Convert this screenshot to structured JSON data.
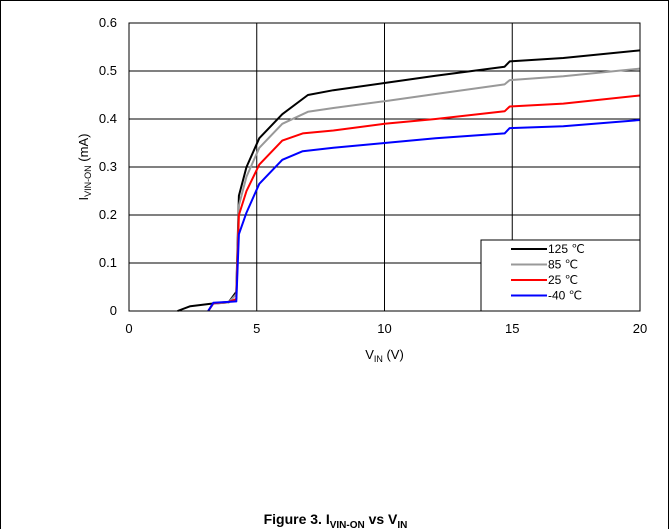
{
  "chart_data": {
    "type": "line",
    "xlabel": {
      "main": "V",
      "sub": "IN",
      "unit": " (V)"
    },
    "ylabel": {
      "main": "I",
      "sub": "VIN-ON",
      "unit": " (mA)"
    },
    "xlim": [
      0,
      20
    ],
    "ylim": [
      0,
      0.6
    ],
    "xticks": [
      0,
      5,
      10,
      15,
      20
    ],
    "yticks": [
      0,
      0.1,
      0.2,
      0.3,
      0.4,
      0.5,
      0.6
    ],
    "ytick_labels": [
      "0",
      "0.1",
      "0.2",
      "0.3",
      "0.4",
      "0.5",
      "0.6"
    ],
    "grid": true,
    "legend_position": "bottom-right",
    "series": [
      {
        "name": "125 ℃",
        "color": "#000000",
        "points": [
          [
            1.9,
            0
          ],
          [
            2.4,
            0.01
          ],
          [
            3.2,
            0.015
          ],
          [
            3.9,
            0.018
          ],
          [
            4.2,
            0.04
          ],
          [
            4.3,
            0.24
          ],
          [
            4.6,
            0.3
          ],
          [
            5.1,
            0.36
          ],
          [
            6,
            0.41
          ],
          [
            7,
            0.45
          ],
          [
            8,
            0.46
          ],
          [
            10,
            0.475
          ],
          [
            12,
            0.49
          ],
          [
            14.7,
            0.509
          ],
          [
            14.9,
            0.52
          ],
          [
            17,
            0.527
          ],
          [
            20,
            0.543
          ]
        ]
      },
      {
        "name": "85 ℃",
        "color": "#999999",
        "points": [
          [
            3.1,
            0
          ],
          [
            3.3,
            0.015
          ],
          [
            3.9,
            0.018
          ],
          [
            4.2,
            0.035
          ],
          [
            4.3,
            0.22
          ],
          [
            4.6,
            0.28
          ],
          [
            5.1,
            0.34
          ],
          [
            6,
            0.39
          ],
          [
            7,
            0.415
          ],
          [
            8,
            0.423
          ],
          [
            10,
            0.437
          ],
          [
            12,
            0.452
          ],
          [
            14.7,
            0.472
          ],
          [
            14.9,
            0.481
          ],
          [
            17,
            0.489
          ],
          [
            20,
            0.505
          ]
        ]
      },
      {
        "name": "25 ℃",
        "color": "#ff0000",
        "points": [
          [
            3.1,
            0
          ],
          [
            3.3,
            0.016
          ],
          [
            3.9,
            0.019
          ],
          [
            4.2,
            0.025
          ],
          [
            4.3,
            0.2
          ],
          [
            4.6,
            0.25
          ],
          [
            5.1,
            0.305
          ],
          [
            6,
            0.355
          ],
          [
            6.8,
            0.37
          ],
          [
            8,
            0.376
          ],
          [
            10,
            0.39
          ],
          [
            12,
            0.4
          ],
          [
            14.7,
            0.416
          ],
          [
            14.9,
            0.426
          ],
          [
            17,
            0.432
          ],
          [
            20,
            0.449
          ]
        ]
      },
      {
        "name": "-40 ℃",
        "color": "#0000ff",
        "points": [
          [
            3.1,
            0
          ],
          [
            3.3,
            0.017
          ],
          [
            3.9,
            0.019
          ],
          [
            4.2,
            0.02
          ],
          [
            4.3,
            0.16
          ],
          [
            4.6,
            0.205
          ],
          [
            5.1,
            0.265
          ],
          [
            6,
            0.315
          ],
          [
            6.8,
            0.333
          ],
          [
            8,
            0.34
          ],
          [
            10,
            0.35
          ],
          [
            12,
            0.36
          ],
          [
            14.7,
            0.37
          ],
          [
            14.9,
            0.381
          ],
          [
            17,
            0.385
          ],
          [
            20,
            0.398
          ]
        ]
      }
    ]
  },
  "caption": {
    "prefix": "Figure 3. I",
    "sub1": "VIN-ON",
    "middle": " vs V",
    "sub2": "IN"
  }
}
